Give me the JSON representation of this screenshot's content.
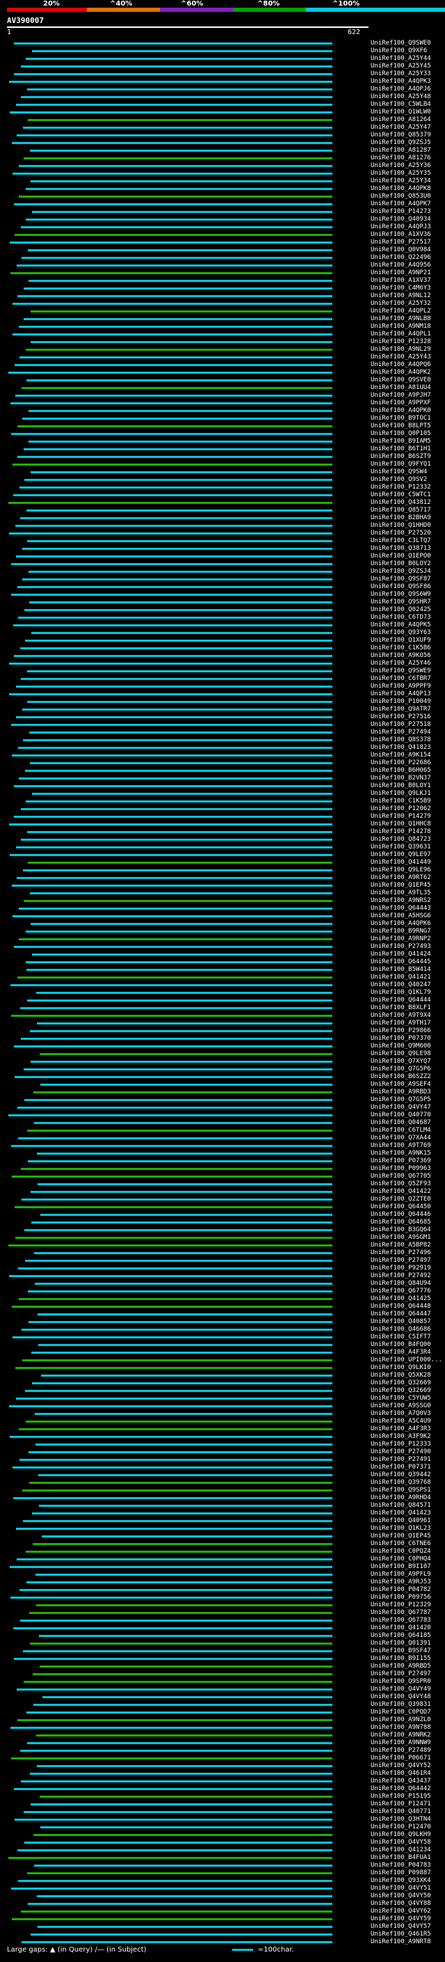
{
  "scale": {
    "labels": [
      "20%",
      "^40%",
      "^60%",
      "^80%",
      "^100%"
    ],
    "colors": [
      "#e00000",
      "#e07000",
      "#8020c0",
      "#00a000",
      "#00c8dc"
    ]
  },
  "query": {
    "id": "AV390007",
    "start": "1",
    "end": "622"
  },
  "hits": [
    "UniRef100_Q9SWE0",
    "UniRef100_Q9XF6",
    "UniRef100_A25Y44",
    "UniRef100_A25Y45",
    "UniRef100_A25Y33",
    "UniRef100_A4QPK3",
    "UniRef100_A4QPJ6",
    "UniRef100_A25Y48",
    "UniRef100_C5WLB4",
    "UniRef100_Q1WLW0",
    "UniRef100_A81264",
    "UniRef100_A25Y47",
    "UniRef100_Q85379",
    "UniRef100_Q9ZSJ5",
    "UniRef100_A81287",
    "UniRef100_A81276",
    "UniRef100_A25Y36",
    "UniRef100_A25Y35",
    "UniRef100_A25Y34",
    "UniRef100_A4QPK8",
    "UniRef100_Q853U0",
    "UniRef100_A4QPK7",
    "UniRef100_P14273",
    "UniRef100_Q40934",
    "UniRef100_A4QPJ3",
    "UniRef100_A1XV36",
    "UniRef100_P27517",
    "UniRef100_Q0V984",
    "UniRef100_Q22496",
    "UniRef100_A4Q956",
    "UniRef100_A9NP21",
    "UniRef100_A1XV37",
    "UniRef100_C4M6Y3",
    "UniRef100_A9NL12",
    "UniRef100_A25Y32",
    "UniRef100_A4QPL2",
    "UniRef100_A9NLB8",
    "UniRef100_A9NM18",
    "UniRef100_A4QPL1",
    "UniRef100_P12328",
    "UniRef100_A9NL29",
    "UniRef100_A25Y43",
    "UniRef100_A4QPQ6",
    "UniRef100_A4QPK2",
    "UniRef100_Q9SVE0",
    "UniRef100_A81UU4",
    "UniRef100_A9PJH7",
    "UniRef100_A9PPXF",
    "UniRef100_A4QPK0",
    "UniRef100_B9TOC1",
    "UniRef100_B8LPT5",
    "UniRef100_Q0P105",
    "UniRef100_B9IAM5",
    "UniRef100_B6T1H1",
    "UniRef100_B6SZT9",
    "UniRef100_Q9FYQ1",
    "UniRef100_Q9SW4",
    "UniRef100_Q9SV2",
    "UniRef100_P12332",
    "UniRef100_C5WTC1",
    "UniRef100_Q43812",
    "UniRef100_Q85717",
    "UniRef100_B2BHA9",
    "UniRef100_Q1HHD0",
    "UniRef100_P27520",
    "UniRef100_C3LTQ7",
    "UniRef100_Q38713",
    "UniRef100_Q1EPO0",
    "UniRef100_B0LOY2",
    "UniRef100_Q9ZSJ4",
    "UniRef100_Q9SF87",
    "UniRef100_Q9SF86",
    "UniRef100_Q9S6W9",
    "UniRef100_Q9SHR7",
    "UniRef100_Q02425",
    "UniRef100_C6TD73",
    "UniRef100_A4QPK5",
    "UniRef100_Q93Y63",
    "UniRef100_Q1XUF9",
    "UniRef100_C1K5B6",
    "UniRef100_A9KO56",
    "UniRef100_A25Y46",
    "UniRef100_Q9SWE9",
    "UniRef100_C6TBR7",
    "UniRef100_A9PPF9",
    "UniRef100_A4QP13",
    "UniRef100_P10049",
    "UniRef100_Q9ATR7",
    "UniRef100_P27516",
    "UniRef100_P27518",
    "UniRef100_P27494",
    "UniRef100_Q8S378",
    "UniRef100_Q41823",
    "UniRef100_A9K154",
    "UniRef100_P22686",
    "UniRef100_B6H065",
    "UniRef100_B2VN37",
    "UniRef100_B0LOY1",
    "UniRef100_Q9LKJ1",
    "UniRef100_C1K5B9",
    "UniRef100_P12062",
    "UniRef100_P14279",
    "UniRef100_Q1HHC8",
    "UniRef100_P14278",
    "UniRef100_Q84723",
    "UniRef100_Q39631",
    "UniRef100_Q9LE97",
    "UniRef100_Q41449",
    "UniRef100_Q9LE96",
    "UniRef100_A9RT62",
    "UniRef100_Q1EP45",
    "UniRef100_A9TL35",
    "UniRef100_A9NRS2",
    "UniRef100_Q64443",
    "UniRef100_A5HSG6",
    "UniRef100_A4QPK6",
    "UniRef100_B9RNG7",
    "UniRef100_A9RNP2",
    "UniRef100_P27493",
    "UniRef100_Q41424",
    "UniRef100_Q64445",
    "UniRef100_B5W414",
    "UniRef100_Q41421",
    "UniRef100_Q40247",
    "UniRef100_Q1KL79",
    "UniRef100_Q64444",
    "UniRef100_B8XLF1",
    "UniRef100_A9T9X4",
    "UniRef100_A9TH17",
    "UniRef100_P29866",
    "UniRef100_P07370",
    "UniRef100_Q9M600",
    "UniRef100_Q9LE98",
    "UniRef100_Q7XYQ7",
    "UniRef100_Q7G5P6",
    "UniRef100_B6SZZ2",
    "UniRef100_A9SEF4",
    "UniRef100_A9RBD3",
    "UniRef100_Q7G5P5",
    "UniRef100_Q4VY47",
    "UniRef100_Q40770",
    "UniRef100_Q04687",
    "UniRef100_C6TLM4",
    "UniRef100_Q7XA44",
    "UniRef100_A9T769",
    "UniRef100_A9NK15",
    "UniRef100_P07369",
    "UniRef100_P09963",
    "UniRef100_Q67705",
    "UniRef100_Q5ZF93",
    "UniRef100_Q41422",
    "UniRef100_Q2ZTE0",
    "UniRef100_Q64450",
    "UniRef100_Q64446",
    "UniRef100_Q64685",
    "UniRef100_B3GQ64",
    "UniRef100_A9SGM1",
    "UniRef100_A5BP82",
    "UniRef100_P27496",
    "UniRef100_P27497",
    "UniRef100_P92919",
    "UniRef100_P27492",
    "UniRef100_Q84U94",
    "UniRef100_Q67776",
    "UniRef100_Q41425",
    "UniRef100_Q64448",
    "UniRef100_Q64447",
    "UniRef100_Q40857",
    "UniRef100_Q46686",
    "UniRef100_C5IFT7",
    "UniRef100_B4FQ00",
    "UniRef100_A4F3R4",
    "UniRef100_UPI000...",
    "UniRef100_Q9LKI0",
    "UniRef100_Q5XK28",
    "UniRef100_Q32669",
    "UniRef100_Q32669",
    "UniRef100_C5YUW5",
    "UniRef100_A9SSG0",
    "UniRef100_A7Q0V3",
    "UniRef100_A5C4U9",
    "UniRef100_A4F3R3",
    "UniRef100_A3F9K2",
    "UniRef100_P12333",
    "UniRef100_P27490",
    "UniRef100_P27491",
    "UniRef100_P07371",
    "UniRef100_Q39442",
    "UniRef100_Q39768",
    "UniRef100_Q9SPS1",
    "UniRef100_A9RHD4",
    "UniRef100_Q84571",
    "UniRef100_Q41423",
    "UniRef100_Q40961",
    "UniRef100_Q1KL23",
    "UniRef100_Q1EP45",
    "UniRef100_C6TNE6",
    "UniRef100_C0PQZ4",
    "UniRef100_C0PHQ4",
    "UniRef100_B9I107",
    "UniRef100_A9PFL9",
    "UniRef100_A9RJ53",
    "UniRef100_P04782",
    "UniRef100_P09756",
    "UniRef100_P12329",
    "UniRef100_Q67787",
    "UniRef100_Q67783",
    "UniRef100_Q41420",
    "UniRef100_Q64185",
    "UniRef100_Q01391",
    "UniRef100_B9SF47",
    "UniRef100_B9I155",
    "UniRef100_A9RBD5",
    "UniRef100_P27497",
    "UniRef100_Q9SPR0",
    "UniRef100_Q4VY49",
    "UniRef100_Q4VY48",
    "UniRef100_Q39831",
    "UniRef100_C0PQD7",
    "UniRef100_A9NZL0",
    "UniRef100_A9N788",
    "UniRef100_A9NRK2",
    "UniRef100_A9NNW9",
    "UniRef100_P27489",
    "UniRef100_P06671",
    "UniRef100_Q4VY52",
    "UniRef100_Q461R4",
    "UniRef100_Q43437",
    "UniRef100_Q64442",
    "UniRef100_P15195",
    "UniRef100_P12471",
    "UniRef100_Q40771",
    "UniRef100_Q3HTN4",
    "UniRef100_P12470",
    "UniRef100_Q9LKH9",
    "UniRef100_Q4VY58",
    "UniRef100_Q41234",
    "UniRef100_B4FUA1",
    "UniRef100_P04783",
    "UniRef100_P09887",
    "UniRef100_Q93XK4",
    "UniRef100_Q4VY51",
    "UniRef100_Q4VY50",
    "UniRef100_Q4VY88",
    "UniRef100_Q4VY62",
    "UniRef100_Q4VY59",
    "UniRef100_Q4VY57",
    "UniRef100_Q461R5",
    "UniRef100_A9NRT8"
  ],
  "legend": {
    "large_gaps": "Large gaps:",
    "in_query": "(in Query)",
    "in_subject": "(in Subject)",
    "scale": "=100char."
  }
}
